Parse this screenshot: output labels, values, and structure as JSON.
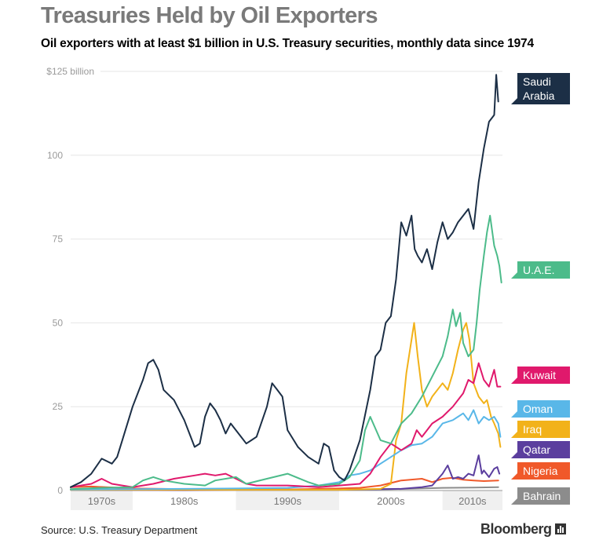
{
  "title": "Treasuries Held by Oil Exporters",
  "subtitle": "Oil exporters with at least $1 billion in U.S. Treasury securities,  monthly data since 1974",
  "source": "Source: U.S. Treasury Department",
  "brand": "Bloomberg",
  "chart_data": {
    "type": "line",
    "title": "Treasuries Held by Oil Exporters",
    "subtitle": "Oil exporters with at least $1 billion in U.S. Treasury securities,  monthly data since 1974",
    "xlabel": "",
    "ylabel": "",
    "x_range": [
      1974,
      2015.8
    ],
    "ylim": [
      0,
      125
    ],
    "grid": true,
    "legend": "right",
    "y_ticks": [
      {
        "value": 0,
        "label": "0"
      },
      {
        "value": 25,
        "label": "25"
      },
      {
        "value": 50,
        "label": "50"
      },
      {
        "value": 75,
        "label": "75"
      },
      {
        "value": 100,
        "label": "100"
      },
      {
        "value": 125,
        "label": "$125 billion"
      }
    ],
    "x_bands": [
      {
        "label": "1970s",
        "start": 1974,
        "end": 1980
      },
      {
        "label": "1980s",
        "start": 1980,
        "end": 1990
      },
      {
        "label": "1990s",
        "start": 1990,
        "end": 2000
      },
      {
        "label": "2000s",
        "start": 2000,
        "end": 2010
      },
      {
        "label": "2010s",
        "start": 2010,
        "end": 2015.8
      }
    ],
    "series": [
      {
        "name": "Bahrain",
        "color": "#8c8c8c",
        "points": [
          [
            1974,
            0.3
          ],
          [
            1980,
            0.4
          ],
          [
            1985,
            0.3
          ],
          [
            1990,
            0.4
          ],
          [
            1995,
            0.3
          ],
          [
            2000,
            0.3
          ],
          [
            2005,
            0.4
          ],
          [
            2008,
            0.6
          ],
          [
            2010,
            0.8
          ],
          [
            2013,
            0.9
          ],
          [
            2015.4,
            1.0
          ]
        ]
      },
      {
        "name": "Nigeria",
        "color": "#f0592a",
        "points": [
          [
            1974,
            1.0
          ],
          [
            1976,
            1.2
          ],
          [
            1980,
            0.6
          ],
          [
            1985,
            0.4
          ],
          [
            1990,
            0.3
          ],
          [
            1995,
            0.3
          ],
          [
            2000,
            0.6
          ],
          [
            2002,
            0.8
          ],
          [
            2004,
            1.5
          ],
          [
            2006,
            3.0
          ],
          [
            2008,
            3.5
          ],
          [
            2009,
            2.5
          ],
          [
            2010,
            3.5
          ],
          [
            2011,
            3.8
          ],
          [
            2012,
            3.2
          ],
          [
            2013,
            3.0
          ],
          [
            2014,
            2.8
          ],
          [
            2015.4,
            3.0
          ]
        ]
      },
      {
        "name": "Qatar",
        "color": "#5b3e9e",
        "points": [
          [
            1974,
            0.2
          ],
          [
            1985,
            0.1
          ],
          [
            1990,
            0.2
          ],
          [
            2000,
            0.2
          ],
          [
            2006,
            0.5
          ],
          [
            2008,
            1.0
          ],
          [
            2009,
            1.5
          ],
          [
            2010,
            5.0
          ],
          [
            2010.5,
            7.5
          ],
          [
            2011,
            3.5
          ],
          [
            2011.5,
            4.0
          ],
          [
            2012,
            3.5
          ],
          [
            2012.5,
            5.0
          ],
          [
            2013,
            4.5
          ],
          [
            2013.5,
            10.5
          ],
          [
            2013.8,
            5.0
          ],
          [
            2014,
            6.0
          ],
          [
            2014.5,
            4.0
          ],
          [
            2015,
            6.5
          ],
          [
            2015.3,
            7.0
          ],
          [
            2015.5,
            5.0
          ]
        ]
      },
      {
        "name": "Iraq",
        "color": "#f2b21a",
        "points": [
          [
            1974,
            0.2
          ],
          [
            2000,
            0.2
          ],
          [
            2004,
            0.5
          ],
          [
            2005,
            2.0
          ],
          [
            2005.5,
            15.0
          ],
          [
            2006,
            20.0
          ],
          [
            2006.5,
            35.0
          ],
          [
            2007,
            45.0
          ],
          [
            2007.25,
            50.0
          ],
          [
            2007.6,
            40.0
          ],
          [
            2008,
            30.0
          ],
          [
            2008.5,
            25.0
          ],
          [
            2009,
            28.0
          ],
          [
            2010,
            32.0
          ],
          [
            2010.5,
            30.0
          ],
          [
            2011,
            35.0
          ],
          [
            2011.5,
            42.0
          ],
          [
            2012,
            48.0
          ],
          [
            2012.3,
            50.0
          ],
          [
            2012.6,
            45.0
          ],
          [
            2013,
            32.0
          ],
          [
            2013.5,
            28.0
          ],
          [
            2014,
            26.0
          ],
          [
            2014.3,
            27.0
          ],
          [
            2014.7,
            22.0
          ],
          [
            2015,
            20.0
          ],
          [
            2015.4,
            17.0
          ],
          [
            2015.6,
            13.0
          ]
        ]
      },
      {
        "name": "Oman",
        "color": "#59b7e8",
        "points": [
          [
            1974,
            0.3
          ],
          [
            1985,
            0.5
          ],
          [
            1990,
            0.6
          ],
          [
            1995,
            0.8
          ],
          [
            1998,
            1.5
          ],
          [
            2000,
            2.5
          ],
          [
            2001,
            4.5
          ],
          [
            2002,
            5.0
          ],
          [
            2003,
            6.0
          ],
          [
            2004,
            8.0
          ],
          [
            2005,
            10.0
          ],
          [
            2006,
            12.0
          ],
          [
            2007,
            13.5
          ],
          [
            2008,
            14.0
          ],
          [
            2009,
            16.0
          ],
          [
            2010,
            20.0
          ],
          [
            2011,
            21.0
          ],
          [
            2011.5,
            22.0
          ],
          [
            2012,
            23.0
          ],
          [
            2012.5,
            21.0
          ],
          [
            2013,
            24.0
          ],
          [
            2013.5,
            20.0
          ],
          [
            2014,
            22.0
          ],
          [
            2014.5,
            21.0
          ],
          [
            2015,
            22.0
          ],
          [
            2015.4,
            20.0
          ],
          [
            2015.6,
            16.0
          ]
        ]
      },
      {
        "name": "Kuwait",
        "color": "#e0196c",
        "points": [
          [
            1974,
            1.0
          ],
          [
            1976,
            2.0
          ],
          [
            1977,
            3.5
          ],
          [
            1978,
            2.0
          ],
          [
            1980,
            1.0
          ],
          [
            1982,
            2.0
          ],
          [
            1984,
            3.5
          ],
          [
            1986,
            4.5
          ],
          [
            1987,
            5.0
          ],
          [
            1988,
            4.5
          ],
          [
            1989,
            5.0
          ],
          [
            1990,
            3.5
          ],
          [
            1991,
            2.0
          ],
          [
            1992,
            1.5
          ],
          [
            1995,
            1.5
          ],
          [
            1998,
            1.0
          ],
          [
            2000,
            1.5
          ],
          [
            2002,
            2.0
          ],
          [
            2003,
            5.0
          ],
          [
            2004,
            10.0
          ],
          [
            2005,
            14.0
          ],
          [
            2006,
            12.0
          ],
          [
            2007,
            14.0
          ],
          [
            2007.5,
            18.0
          ],
          [
            2008,
            16.0
          ],
          [
            2009,
            20.0
          ],
          [
            2010,
            22.0
          ],
          [
            2011,
            25.0
          ],
          [
            2012,
            29.0
          ],
          [
            2012.5,
            33.0
          ],
          [
            2013,
            32.0
          ],
          [
            2013.5,
            38.0
          ],
          [
            2014,
            33.0
          ],
          [
            2014.5,
            31.0
          ],
          [
            2015,
            36.0
          ],
          [
            2015.3,
            31.0
          ],
          [
            2015.6,
            31.0
          ]
        ]
      },
      {
        "name": "U.A.E.",
        "color": "#4cbb8a",
        "points": [
          [
            1974,
            0.4
          ],
          [
            1977,
            0.8
          ],
          [
            1980,
            1.0
          ],
          [
            1981,
            3.0
          ],
          [
            1982,
            4.0
          ],
          [
            1983,
            3.0
          ],
          [
            1985,
            2.0
          ],
          [
            1987,
            1.5
          ],
          [
            1988,
            3.0
          ],
          [
            1990,
            4.0
          ],
          [
            1991,
            2.0
          ],
          [
            1993,
            3.5
          ],
          [
            1995,
            5.0
          ],
          [
            1997,
            2.5
          ],
          [
            1998,
            1.5
          ],
          [
            2000,
            2.0
          ],
          [
            2001,
            4.0
          ],
          [
            2002,
            9.0
          ],
          [
            2002.5,
            18.0
          ],
          [
            2003,
            22.0
          ],
          [
            2004,
            15.0
          ],
          [
            2005,
            14.0
          ],
          [
            2006,
            20.0
          ],
          [
            2007,
            23.0
          ],
          [
            2008,
            28.0
          ],
          [
            2009,
            34.0
          ],
          [
            2010,
            40.0
          ],
          [
            2010.5,
            46.0
          ],
          [
            2011,
            54.0
          ],
          [
            2011.3,
            49.0
          ],
          [
            2011.7,
            53.0
          ],
          [
            2012,
            44.0
          ],
          [
            2012.5,
            40.0
          ],
          [
            2013,
            42.0
          ],
          [
            2013.3,
            50.0
          ],
          [
            2013.6,
            60.0
          ],
          [
            2014,
            70.0
          ],
          [
            2014.3,
            77.0
          ],
          [
            2014.6,
            82.0
          ],
          [
            2015,
            73.0
          ],
          [
            2015.3,
            70.0
          ],
          [
            2015.5,
            67.0
          ],
          [
            2015.7,
            62.0
          ]
        ]
      },
      {
        "name": "Saudi Arabia",
        "color": "#1c2f46",
        "points": [
          [
            1974,
            1.0
          ],
          [
            1975,
            2.5
          ],
          [
            1976,
            5.0
          ],
          [
            1977,
            9.5
          ],
          [
            1978,
            8.0
          ],
          [
            1978.5,
            10.0
          ],
          [
            1979,
            15.0
          ],
          [
            1980,
            25.0
          ],
          [
            1981,
            33.0
          ],
          [
            1981.5,
            38.0
          ],
          [
            1982,
            39.0
          ],
          [
            1982.5,
            36.0
          ],
          [
            1983,
            30.0
          ],
          [
            1984,
            27.0
          ],
          [
            1985,
            21.0
          ],
          [
            1985.5,
            17.0
          ],
          [
            1986,
            13.0
          ],
          [
            1986.5,
            14.0
          ],
          [
            1987,
            22.0
          ],
          [
            1987.5,
            26.0
          ],
          [
            1988,
            24.0
          ],
          [
            1988.5,
            21.0
          ],
          [
            1989,
            17.0
          ],
          [
            1989.5,
            20.0
          ],
          [
            1990,
            18.0
          ],
          [
            1990.5,
            16.0
          ],
          [
            1991,
            14.0
          ],
          [
            1991.5,
            15.0
          ],
          [
            1992,
            16.0
          ],
          [
            1993,
            25.0
          ],
          [
            1993.5,
            32.0
          ],
          [
            1994,
            30.0
          ],
          [
            1994.5,
            28.0
          ],
          [
            1995,
            18.0
          ],
          [
            1996,
            13.0
          ],
          [
            1997,
            10.0
          ],
          [
            1998,
            8.0
          ],
          [
            1998.5,
            14.0
          ],
          [
            1999,
            13.0
          ],
          [
            1999.5,
            6.0
          ],
          [
            2000,
            4.0
          ],
          [
            2000.5,
            3.0
          ],
          [
            2001,
            6.0
          ],
          [
            2002,
            15.0
          ],
          [
            2003,
            30.0
          ],
          [
            2003.5,
            40.0
          ],
          [
            2004,
            42.0
          ],
          [
            2004.5,
            50.0
          ],
          [
            2005,
            52.0
          ],
          [
            2005.5,
            63.0
          ],
          [
            2006,
            80.0
          ],
          [
            2006.5,
            76.0
          ],
          [
            2007,
            82.0
          ],
          [
            2007.3,
            72.0
          ],
          [
            2007.6,
            70.0
          ],
          [
            2008,
            68.0
          ],
          [
            2008.5,
            72.0
          ],
          [
            2009,
            66.0
          ],
          [
            2009.5,
            74.0
          ],
          [
            2010,
            80.0
          ],
          [
            2010.5,
            75.0
          ],
          [
            2011,
            77.0
          ],
          [
            2011.5,
            80.0
          ],
          [
            2012,
            82.0
          ],
          [
            2012.5,
            84.0
          ],
          [
            2013,
            78.0
          ],
          [
            2013.5,
            92.0
          ],
          [
            2014,
            102.0
          ],
          [
            2014.5,
            110.0
          ],
          [
            2015,
            112.0
          ],
          [
            2015.2,
            124.0
          ],
          [
            2015.4,
            116.0
          ]
        ]
      }
    ]
  },
  "legend_labels": [
    {
      "lines": [
        "Saudi",
        "Arabia"
      ],
      "color": "#1c2f46"
    },
    {
      "lines": [
        "U.A.E."
      ],
      "color": "#4cbb8a"
    },
    {
      "lines": [
        "Kuwait"
      ],
      "color": "#e0196c"
    },
    {
      "lines": [
        "Oman"
      ],
      "color": "#59b7e8"
    },
    {
      "lines": [
        "Iraq"
      ],
      "color": "#f2b21a"
    },
    {
      "lines": [
        "Qatar"
      ],
      "color": "#5b3e9e"
    },
    {
      "lines": [
        "Nigeria"
      ],
      "color": "#f0592a"
    },
    {
      "lines": [
        "Bahrain"
      ],
      "color": "#8c8c8c"
    }
  ]
}
